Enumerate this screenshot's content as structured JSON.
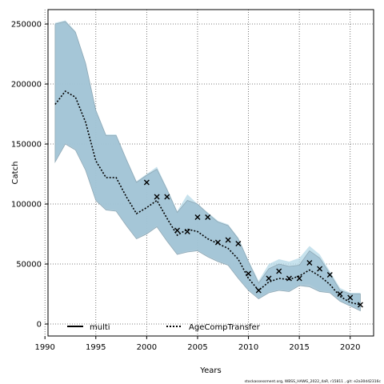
{
  "chart_data": {
    "type": "line",
    "xlabel": "Years",
    "ylabel": "Catch",
    "xlim": [
      1990.3,
      2022.3
    ],
    "ylim": [
      -10000,
      262000
    ],
    "xticks": [
      1990,
      1995,
      2000,
      2005,
      2010,
      2015,
      2020
    ],
    "yticks": [
      0,
      50000,
      100000,
      150000,
      200000,
      250000
    ],
    "grid": true,
    "legend_position": "bottom-left",
    "legend": [
      {
        "label": "multi",
        "style": "solid",
        "color": "#000000"
      },
      {
        "label": "AgeCompTransfer",
        "style": "dotted",
        "color": "#000000"
      }
    ],
    "colors": {
      "multi_band": "#9fc1d2",
      "multi_band_edge": "#8fa8b5",
      "transfer_band": "#b4d8e7",
      "line": "#000000",
      "observed": "#000000"
    },
    "x": [
      1991,
      1992,
      1993,
      1994,
      1995,
      1996,
      1997,
      1998,
      1999,
      2000,
      2001,
      2002,
      2003,
      2004,
      2005,
      2006,
      2007,
      2008,
      2009,
      2010,
      2011,
      2012,
      2013,
      2014,
      2015,
      2016,
      2017,
      2018,
      2019,
      2020,
      2021
    ],
    "series": [
      {
        "name": "multi",
        "lower": [
          135000,
          150000,
          145000,
          128000,
          103000,
          95000,
          94000,
          82000,
          71000,
          75000,
          81000,
          69000,
          58000,
          60000,
          61000,
          56000,
          52000,
          49000,
          38000,
          28000,
          21000,
          26000,
          28000,
          27000,
          32000,
          31000,
          27000,
          26000,
          19000,
          15000,
          11000
        ],
        "upper": [
          250000,
          252000,
          243000,
          217000,
          178000,
          157000,
          157000,
          137000,
          118000,
          124000,
          129000,
          112000,
          93000,
          103000,
          100000,
          92000,
          85000,
          82000,
          71000,
          52000,
          34000,
          46000,
          50000,
          48000,
          49000,
          61000,
          55000,
          42000,
          28000,
          25000,
          25000
        ]
      },
      {
        "name": "AgeCompTransfer",
        "estimate": [
          183000,
          194000,
          189000,
          168000,
          136000,
          122000,
          122000,
          106000,
          92000,
          97000,
          103000,
          88000,
          74000,
          79000,
          77000,
          71000,
          67000,
          63000,
          54000,
          38000,
          28000,
          35000,
          38000,
          37000,
          40000,
          45000,
          40000,
          33000,
          23000,
          18000,
          16000
        ],
        "lower": [
          136000,
          151000,
          146000,
          129000,
          104000,
          96000,
          95000,
          83000,
          72000,
          76000,
          82000,
          70000,
          59000,
          61000,
          62000,
          57000,
          53000,
          50000,
          39000,
          29000,
          22000,
          27000,
          29000,
          28000,
          33000,
          33000,
          28000,
          27000,
          20000,
          16000,
          12000
        ],
        "upper": [
          251000,
          253000,
          244000,
          218000,
          179000,
          158000,
          158000,
          138000,
          119000,
          125000,
          131000,
          113000,
          94000,
          108000,
          100000,
          93000,
          86000,
          83000,
          72000,
          53000,
          36000,
          50000,
          54000,
          52000,
          55000,
          65000,
          58000,
          44000,
          30000,
          26000,
          26000
        ]
      },
      {
        "name": "observed",
        "x": [
          2000,
          2001,
          2002,
          2003,
          2004,
          2005,
          2006,
          2007,
          2008,
          2009,
          2010,
          2011,
          2012,
          2013,
          2014,
          2015,
          2016,
          2017,
          2018,
          2019,
          2020,
          2021
        ],
        "values": [
          118000,
          106000,
          106000,
          78000,
          77000,
          89000,
          89000,
          68000,
          70000,
          67000,
          42000,
          28000,
          38000,
          44000,
          38000,
          38000,
          51000,
          46000,
          41000,
          25000,
          22000,
          16000
        ]
      }
    ],
    "footnote": "stockassessment.org, WBSS_HAWG_2022_4aR, r15811 , git: e2a30d42316c"
  }
}
